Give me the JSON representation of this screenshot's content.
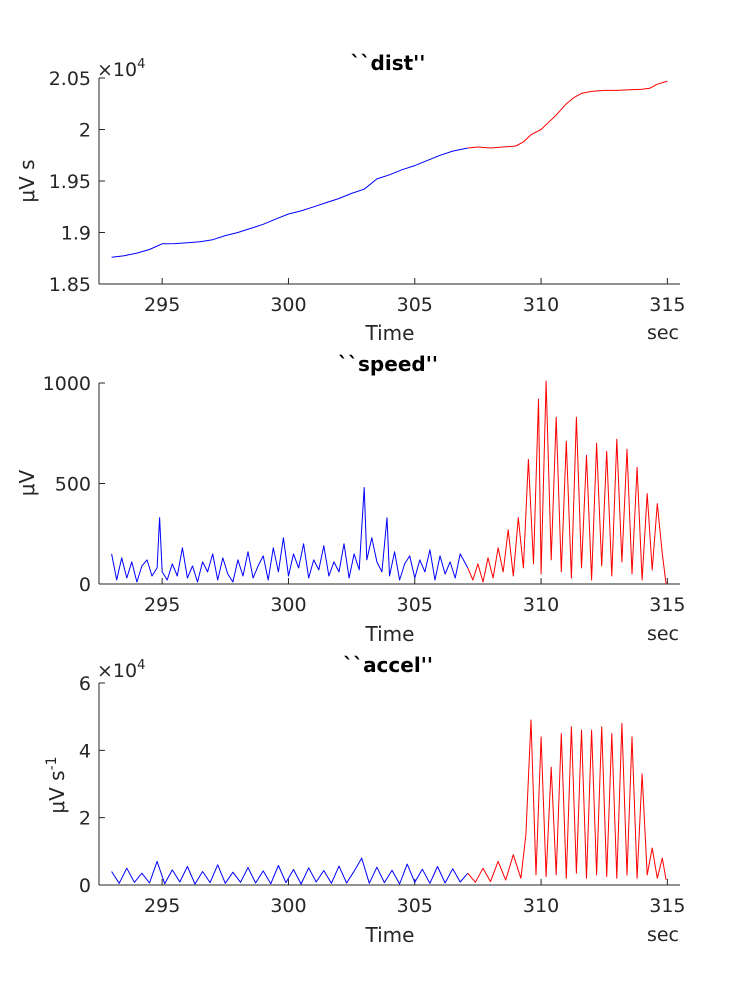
{
  "chart_data": [
    {
      "type": "line",
      "title": "``dist''",
      "xlabel": "Time",
      "x_unit": "sec",
      "ylabel": "μV s",
      "y_exponent_label": "×10",
      "y_exponent": "4",
      "xlim": [
        292.5,
        315.5
      ],
      "ylim": [
        18500,
        20500
      ],
      "xticks": [
        295,
        300,
        305,
        310,
        315
      ],
      "xtick_labels": [
        "295",
        "300",
        "305",
        "310",
        "315"
      ],
      "yticks": [
        18500,
        19000,
        19500,
        20000,
        20500
      ],
      "ytick_labels": [
        "1.85",
        "1.9",
        "1.95",
        "2",
        "2.05"
      ],
      "grid": false,
      "series": [
        {
          "color": "#0000ff",
          "x": [
            293,
            293.5,
            294,
            294.5,
            295,
            295.5,
            296,
            296.5,
            297,
            297.5,
            298,
            298.5,
            299,
            299.5,
            300,
            300.5,
            301,
            301.5,
            302,
            302.5,
            303,
            303.5,
            304,
            304.5,
            305,
            305.5,
            306,
            306.5,
            307.1
          ],
          "y": [
            18760,
            18775,
            18800,
            18835,
            18890,
            18892,
            18900,
            18910,
            18930,
            18970,
            19000,
            19040,
            19080,
            19130,
            19180,
            19210,
            19250,
            19290,
            19330,
            19380,
            19420,
            19520,
            19560,
            19610,
            19650,
            19700,
            19750,
            19790,
            19820
          ]
        },
        {
          "color": "#ff0000",
          "x": [
            307.1,
            307.5,
            308,
            308.5,
            309,
            309.3,
            309.6,
            310,
            310.3,
            310.6,
            311,
            311.3,
            311.6,
            312,
            312.5,
            313,
            313.5,
            314,
            314.3,
            314.6,
            315
          ],
          "y": [
            19820,
            19830,
            19820,
            19830,
            19840,
            19880,
            19950,
            20000,
            20070,
            20140,
            20250,
            20310,
            20350,
            20370,
            20380,
            20380,
            20385,
            20390,
            20400,
            20440,
            20470
          ]
        }
      ]
    },
    {
      "type": "line",
      "title": "``speed''",
      "xlabel": "Time",
      "x_unit": "sec",
      "ylabel": "μV",
      "xlim": [
        292.5,
        315.5
      ],
      "ylim": [
        0,
        1000
      ],
      "xticks": [
        295,
        300,
        305,
        310,
        315
      ],
      "xtick_labels": [
        "295",
        "300",
        "305",
        "310",
        "315"
      ],
      "yticks": [
        0,
        500,
        1000
      ],
      "ytick_labels": [
        "0",
        "500",
        "1000"
      ],
      "grid": false,
      "series": [
        {
          "color": "#0000ff",
          "x": [
            293,
            293.2,
            293.4,
            293.6,
            293.8,
            294,
            294.2,
            294.4,
            294.6,
            294.8,
            294.9,
            295.0,
            295.2,
            295.4,
            295.6,
            295.8,
            296,
            296.2,
            296.4,
            296.6,
            296.8,
            297,
            297.2,
            297.4,
            297.6,
            297.8,
            298,
            298.2,
            298.4,
            298.6,
            298.8,
            299,
            299.2,
            299.4,
            299.6,
            299.8,
            300,
            300.2,
            300.4,
            300.6,
            300.8,
            301,
            301.2,
            301.4,
            301.6,
            301.8,
            302,
            302.2,
            302.4,
            302.6,
            302.8,
            303.0,
            303.1,
            303.3,
            303.5,
            303.7,
            303.9,
            304.0,
            304.2,
            304.4,
            304.6,
            304.8,
            305,
            305.2,
            305.4,
            305.6,
            305.8,
            306,
            306.2,
            306.4,
            306.6,
            306.8,
            307.1
          ],
          "y": [
            150,
            20,
            130,
            30,
            110,
            10,
            90,
            120,
            40,
            80,
            330,
            60,
            20,
            100,
            40,
            180,
            30,
            90,
            10,
            110,
            60,
            150,
            20,
            130,
            50,
            10,
            120,
            40,
            160,
            30,
            90,
            140,
            20,
            180,
            60,
            230,
            40,
            150,
            80,
            200,
            30,
            120,
            70,
            190,
            40,
            110,
            60,
            200,
            30,
            150,
            70,
            480,
            120,
            230,
            110,
            60,
            330,
            40,
            160,
            20,
            100,
            140,
            30,
            120,
            60,
            170,
            20,
            140,
            50,
            110,
            30,
            150,
            80
          ]
        },
        {
          "color": "#ff0000",
          "x": [
            307.1,
            307.3,
            307.5,
            307.7,
            307.9,
            308.1,
            308.3,
            308.5,
            308.7,
            308.9,
            309.1,
            309.3,
            309.5,
            309.7,
            309.9,
            310.0,
            310.2,
            310.4,
            310.6,
            310.8,
            311.0,
            311.2,
            311.4,
            311.6,
            311.8,
            312.0,
            312.2,
            312.4,
            312.6,
            312.8,
            313.0,
            313.2,
            313.4,
            313.6,
            313.8,
            314.0,
            314.2,
            314.4,
            314.6,
            314.8,
            314.95
          ],
          "y": [
            80,
            20,
            100,
            10,
            130,
            30,
            180,
            60,
            270,
            40,
            330,
            80,
            620,
            100,
            920,
            50,
            1010,
            120,
            830,
            60,
            710,
            30,
            830,
            80,
            640,
            20,
            700,
            90,
            660,
            40,
            720,
            110,
            670,
            50,
            580,
            20,
            450,
            70,
            400,
            150,
            0
          ]
        }
      ]
    },
    {
      "type": "line",
      "title": "``accel''",
      "xlabel": "Time",
      "x_unit": "sec",
      "ylabel": "μV s-1",
      "y_exponent_label": "×10",
      "y_exponent": "4",
      "xlim": [
        292.5,
        315.5
      ],
      "ylim": [
        0,
        60000
      ],
      "xticks": [
        295,
        300,
        305,
        310,
        315
      ],
      "xtick_labels": [
        "295",
        "300",
        "305",
        "310",
        "315"
      ],
      "yticks": [
        0,
        20000,
        40000,
        60000
      ],
      "ytick_labels": [
        "0",
        "2",
        "4",
        "6"
      ],
      "grid": false,
      "series": [
        {
          "color": "#0000ff",
          "x": [
            293,
            293.3,
            293.6,
            293.9,
            294.2,
            294.5,
            294.8,
            295.1,
            295.4,
            295.7,
            296,
            296.3,
            296.6,
            296.9,
            297.2,
            297.5,
            297.8,
            298.1,
            298.4,
            298.7,
            299,
            299.3,
            299.6,
            299.9,
            300.2,
            300.5,
            300.8,
            301.1,
            301.4,
            301.7,
            302,
            302.3,
            302.6,
            302.9,
            303.2,
            303.5,
            303.8,
            304.1,
            304.4,
            304.7,
            305,
            305.3,
            305.6,
            305.9,
            306.2,
            306.5,
            306.8,
            307.1
          ],
          "y": [
            4000,
            500,
            5000,
            800,
            3500,
            600,
            7000,
            400,
            4500,
            900,
            5500,
            300,
            4000,
            700,
            6000,
            500,
            3800,
            800,
            5200,
            600,
            4200,
            400,
            5800,
            700,
            4600,
            300,
            5100,
            900,
            4300,
            500,
            5600,
            600,
            4100,
            8000,
            500,
            5300,
            700,
            4400,
            300,
            6200,
            800,
            4700,
            500,
            5500,
            600,
            4800,
            900,
            3500
          ]
        },
        {
          "color": "#ff0000",
          "x": [
            307.1,
            307.4,
            307.7,
            308.0,
            308.3,
            308.6,
            308.9,
            309.2,
            309.4,
            309.6,
            309.8,
            310.0,
            310.2,
            310.4,
            310.6,
            310.8,
            311.0,
            311.2,
            311.4,
            311.6,
            311.8,
            312.0,
            312.2,
            312.4,
            312.6,
            312.8,
            313.0,
            313.2,
            313.4,
            313.6,
            313.8,
            314.0,
            314.2,
            314.4,
            314.6,
            314.8,
            314.95
          ],
          "y": [
            3500,
            800,
            5000,
            1000,
            7000,
            1500,
            9000,
            2000,
            15000,
            49000,
            3000,
            44000,
            2500,
            35000,
            3000,
            45000,
            2000,
            47000,
            3500,
            46000,
            2000,
            46000,
            3000,
            47000,
            2500,
            45000,
            2000,
            48000,
            3000,
            44000,
            2000,
            33000,
            3000,
            11000,
            2000,
            8000,
            1500
          ]
        }
      ]
    }
  ]
}
